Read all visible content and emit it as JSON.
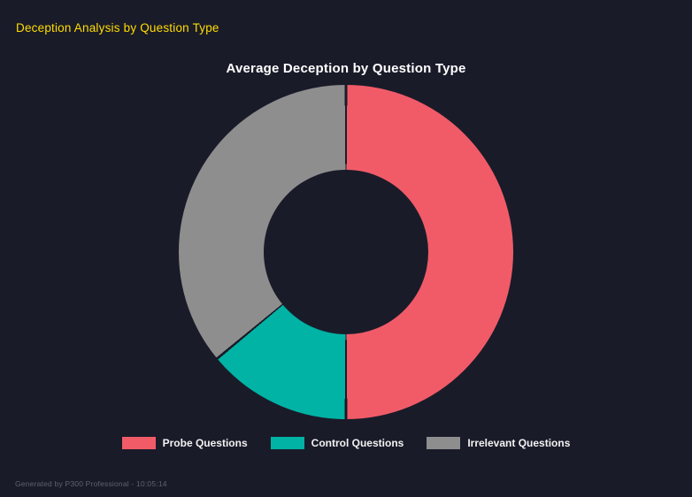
{
  "header": {
    "title": "Deception Analysis by Question Type"
  },
  "chart_data": {
    "type": "pie",
    "variant": "donut",
    "title": "Average Deception by Question Type",
    "categories": [
      "Probe Questions",
      "Control Questions",
      "Irrelevant Questions"
    ],
    "values": [
      50,
      14,
      36
    ],
    "colors": [
      "#f15b68",
      "#00b3a4",
      "#8e8e8e"
    ],
    "start_angle": "top",
    "direction": "clockwise",
    "legend_position": "bottom",
    "hole_ratio": 0.49
  },
  "footer": {
    "text": "Generated by P300 Professional - 10:05:14"
  },
  "theme": {
    "background": "#1a1b29",
    "header_color": "#ffdd00",
    "title_color": "#ffffff",
    "legend_text_color": "#f2f2f2",
    "footer_color": "#61616d"
  }
}
